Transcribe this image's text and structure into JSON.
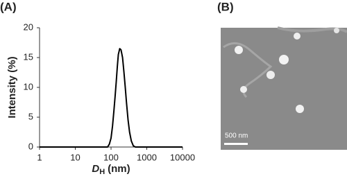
{
  "panels": [
    "(A)",
    "(B)"
  ],
  "chart_data": {
    "type": "line",
    "ylabel": "Intensity (%)",
    "xlabel": {
      "main": "D",
      "sub": "H",
      "rest": "(nm)"
    },
    "log_x": true,
    "color": "#000000",
    "x": [
      1,
      70,
      80,
      90,
      100,
      110,
      120,
      130,
      140,
      150,
      160,
      175,
      190,
      210,
      230,
      250,
      270,
      300,
      330,
      370,
      420,
      480,
      10000
    ],
    "values": [
      0,
      0,
      0,
      0.5,
      1.5,
      3.5,
      6,
      8.5,
      11,
      13.5,
      15.5,
      16.5,
      16.3,
      15,
      12.5,
      10,
      7.5,
      4.5,
      2.5,
      1,
      0.2,
      0,
      0
    ],
    "xlim": [
      1,
      10000
    ],
    "xticks": [
      1,
      10,
      100,
      1000,
      10000
    ],
    "ylim": [
      0,
      20
    ],
    "yticks": [
      0,
      5,
      10,
      15,
      20
    ]
  },
  "image": {
    "scale_bar": "500 nm"
  }
}
